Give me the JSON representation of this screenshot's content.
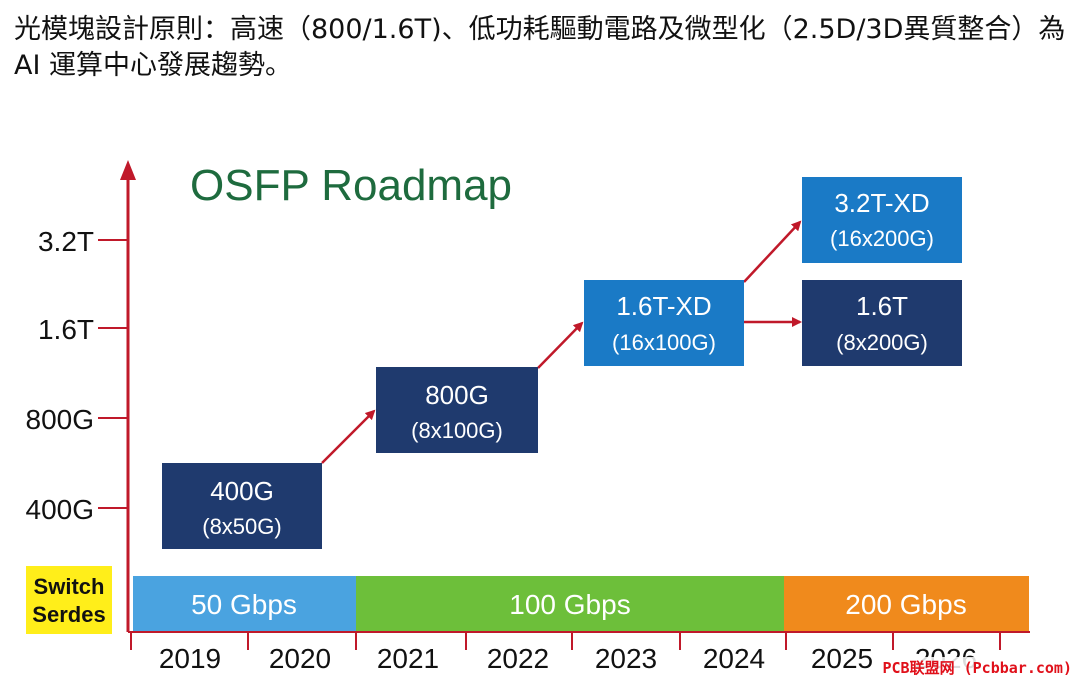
{
  "caption": "光模塊設計原則：高速（800/1.6T)、低功耗驅動電路及微型化（2.5D/3D異質整合）為AI 運算中心發展趨勢。",
  "title": "OSFP Roadmap",
  "y_ticks": [
    "3.2T",
    "1.6T",
    "800G",
    "400G"
  ],
  "serdes_label_line1": "Switch",
  "serdes_label_line2": "Serdes",
  "serdes_bands": [
    {
      "label": "50 Gbps",
      "color": "#4aa3e0"
    },
    {
      "label": "100 Gbps",
      "color": "#6dbf3a"
    },
    {
      "label": "200 Gbps",
      "color": "#f08a1c"
    }
  ],
  "years": [
    "2019",
    "2020",
    "2021",
    "2022",
    "2023",
    "2024",
    "2025",
    "2026"
  ],
  "nodes": [
    {
      "id": "n400",
      "line1": "400G",
      "line2": "(8x50G)",
      "color": "#1f3a6e"
    },
    {
      "id": "n800",
      "line1": "800G",
      "line2": "(8x100G)",
      "color": "#1f3a6e"
    },
    {
      "id": "n16xd",
      "line1": "1.6T-XD",
      "line2": "(16x100G)",
      "color": "#1a7ac6"
    },
    {
      "id": "n32xd",
      "line1": "3.2T-XD",
      "line2": "(16x200G)",
      "color": "#1a7ac6"
    },
    {
      "id": "n16",
      "line1": "1.6T",
      "line2": "(8x200G)",
      "color": "#1f3a6e"
    }
  ],
  "colors": {
    "axis": "#c0192a",
    "title": "#1e6b3e",
    "serdes_bg": "#ffee1a"
  },
  "watermark": "PCB联盟网 (Pcbbar.com)"
}
